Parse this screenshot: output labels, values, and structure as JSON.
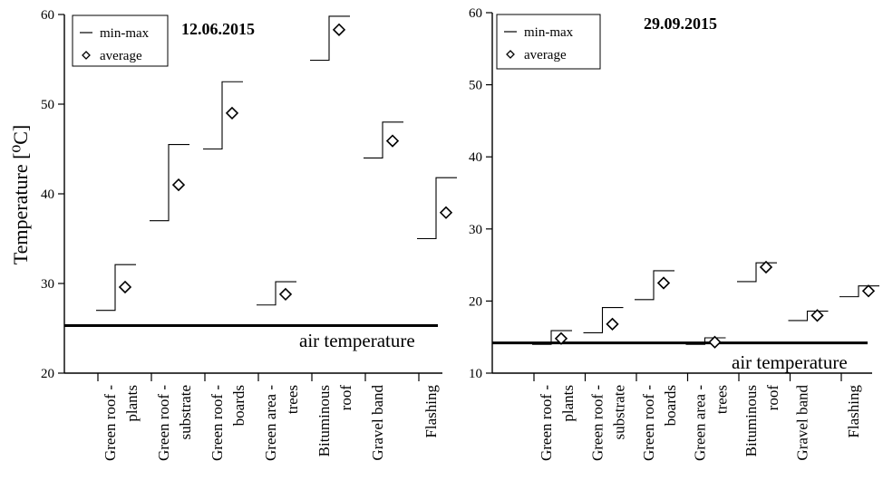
{
  "chart_data": [
    {
      "type": "range-marker",
      "title": "12.06.2015",
      "ylabel": "Temperature [⁰C]",
      "xlabel": "",
      "ylim": [
        20,
        60
      ],
      "yticks": [
        20,
        30,
        40,
        50,
        60
      ],
      "grid": false,
      "legend_position": "top-left",
      "legend": [
        "min-max",
        "average"
      ],
      "categories": [
        [
          "Green roof -",
          "plants"
        ],
        [
          "Green roof -",
          "substrate"
        ],
        [
          "Green roof -",
          "boards"
        ],
        [
          "Green area -",
          "trees"
        ],
        [
          "Bituminous",
          "roof"
        ],
        [
          "Gravel band"
        ],
        [
          "Flashing"
        ]
      ],
      "min": [
        27.0,
        37.0,
        45.0,
        27.6,
        54.9,
        44.0,
        35.0
      ],
      "max": [
        32.1,
        45.5,
        52.5,
        30.2,
        59.8,
        48.0,
        41.8
      ],
      "average": [
        29.6,
        41.0,
        49.0,
        28.8,
        58.3,
        45.9,
        37.9
      ],
      "reference_line": {
        "label": "air temperature",
        "value": 25.3
      }
    },
    {
      "type": "range-marker",
      "title": "29.09.2015",
      "ylabel": "",
      "xlabel": "",
      "ylim": [
        10,
        60
      ],
      "yticks": [
        10,
        20,
        30,
        40,
        50,
        60
      ],
      "grid": false,
      "legend_position": "top-left",
      "legend": [
        "min-max",
        "average"
      ],
      "categories": [
        [
          "Green roof -",
          "plants"
        ],
        [
          "Green roof -",
          "substrate"
        ],
        [
          "Green roof -",
          "boards"
        ],
        [
          "Green area -",
          "trees"
        ],
        [
          "Bituminous",
          "roof"
        ],
        [
          "Gravel band"
        ],
        [
          "Flashing"
        ]
      ],
      "min": [
        14.0,
        15.6,
        20.2,
        14.0,
        22.7,
        17.3,
        20.6
      ],
      "max": [
        15.9,
        19.1,
        24.2,
        14.9,
        25.3,
        18.6,
        22.1
      ],
      "average": [
        14.8,
        16.8,
        22.5,
        14.3,
        24.7,
        18.0,
        21.4
      ],
      "reference_line": {
        "label": "air temperature",
        "value": 14.2
      }
    }
  ]
}
